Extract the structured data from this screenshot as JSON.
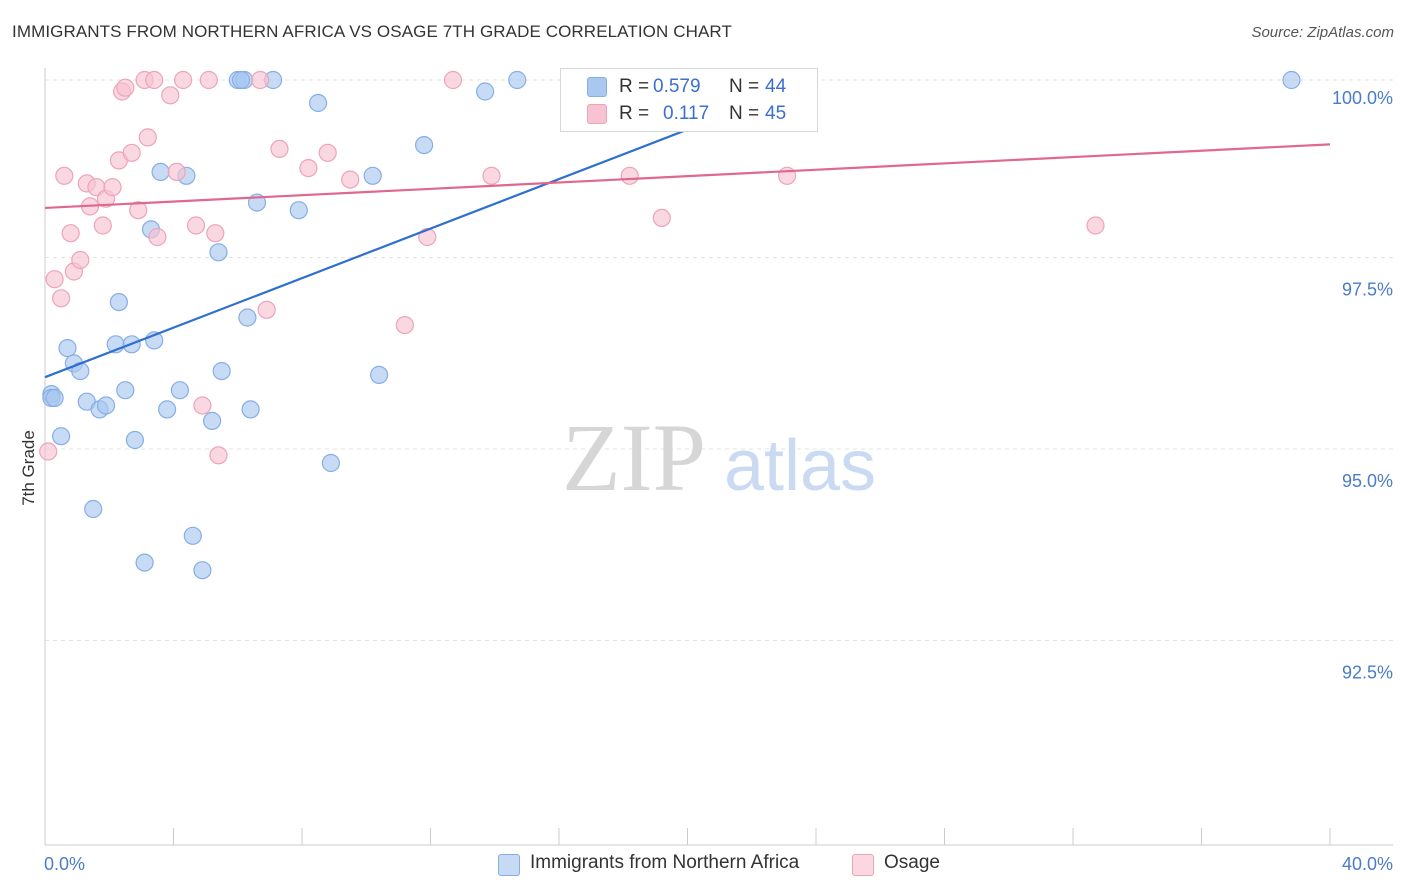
{
  "title": "IMMIGRANTS FROM NORTHERN AFRICA VS OSAGE 7TH GRADE CORRELATION CHART",
  "source": "Source: ZipAtlas.com",
  "watermark": {
    "zip": "ZIP",
    "atlas": "atlas"
  },
  "legend": {
    "r_label": "R =",
    "n_label": "N =",
    "series": [
      {
        "r": "0.579",
        "n": "44"
      },
      {
        "r": "0.117",
        "n": "45"
      }
    ]
  },
  "chart_data": {
    "type": "scatter",
    "title": "IMMIGRANTS FROM NORTHERN AFRICA VS OSAGE 7TH GRADE CORRELATION CHART",
    "xlabel": "",
    "ylabel": "7th Grade",
    "xlim": [
      0,
      40
    ],
    "ylim": [
      90.0,
      100.15
    ],
    "x_tick_labels": [
      "0.0%",
      "40.0%"
    ],
    "y_ticks": [
      100.0,
      97.5,
      95.0,
      92.5
    ],
    "y_tick_labels": [
      "100.0%",
      "97.5%",
      "95.0%",
      "92.5%"
    ],
    "legend_position": "top-center",
    "series": [
      {
        "name": "Immigrants from Northern Africa",
        "color": "#a9c7ef",
        "stroke": "#86aee6",
        "line_color": "#2f6fd0",
        "trend": {
          "x": [
            0,
            24
          ],
          "y": [
            96.12,
            100.0
          ]
        },
        "points": [
          [
            0.2,
            95.9
          ],
          [
            0.2,
            95.85
          ],
          [
            0.5,
            95.35
          ],
          [
            0.7,
            96.5
          ],
          [
            0.9,
            96.3
          ],
          [
            1.1,
            96.2
          ],
          [
            1.3,
            95.8
          ],
          [
            1.5,
            94.4
          ],
          [
            1.7,
            95.7
          ],
          [
            1.9,
            95.75
          ],
          [
            2.2,
            96.55
          ],
          [
            2.3,
            97.1
          ],
          [
            2.5,
            95.95
          ],
          [
            2.7,
            96.55
          ],
          [
            2.8,
            95.3
          ],
          [
            3.1,
            93.7
          ],
          [
            3.3,
            98.05
          ],
          [
            3.4,
            96.6
          ],
          [
            3.6,
            98.8
          ],
          [
            3.8,
            95.7
          ],
          [
            4.2,
            95.95
          ],
          [
            4.4,
            98.75
          ],
          [
            4.6,
            94.05
          ],
          [
            4.9,
            93.6
          ],
          [
            5.2,
            95.55
          ],
          [
            5.4,
            97.75
          ],
          [
            5.5,
            96.2
          ],
          [
            6.0,
            100.0
          ],
          [
            6.2,
            100.0
          ],
          [
            6.3,
            96.9
          ],
          [
            6.4,
            95.7
          ],
          [
            6.6,
            98.4
          ],
          [
            7.1,
            100.0
          ],
          [
            7.9,
            98.3
          ],
          [
            8.5,
            99.7
          ],
          [
            8.9,
            95.0
          ],
          [
            10.2,
            98.75
          ],
          [
            10.4,
            96.15
          ],
          [
            11.8,
            99.15
          ],
          [
            13.7,
            99.85
          ],
          [
            14.7,
            100.0
          ],
          [
            38.8,
            100.0
          ],
          [
            0.3,
            95.85
          ],
          [
            6.1,
            100.0
          ]
        ]
      },
      {
        "name": "Osage",
        "color": "#f7c3d3",
        "stroke": "#eda3ba",
        "line_color": "#e0688e",
        "trend": {
          "x": [
            0,
            40
          ],
          "y": [
            98.33,
            99.16
          ]
        },
        "points": [
          [
            0.1,
            95.15
          ],
          [
            0.3,
            97.4
          ],
          [
            0.5,
            97.15
          ],
          [
            0.6,
            98.75
          ],
          [
            0.8,
            98.0
          ],
          [
            0.9,
            97.5
          ],
          [
            1.1,
            97.65
          ],
          [
            1.3,
            98.65
          ],
          [
            1.4,
            98.35
          ],
          [
            1.6,
            98.6
          ],
          [
            1.8,
            98.1
          ],
          [
            1.9,
            98.45
          ],
          [
            2.1,
            98.6
          ],
          [
            2.3,
            98.95
          ],
          [
            2.4,
            99.85
          ],
          [
            2.5,
            99.9
          ],
          [
            2.7,
            99.05
          ],
          [
            2.9,
            98.3
          ],
          [
            3.1,
            100.0
          ],
          [
            3.2,
            99.25
          ],
          [
            3.4,
            100.0
          ],
          [
            3.5,
            97.95
          ],
          [
            3.9,
            99.8
          ],
          [
            4.1,
            98.8
          ],
          [
            4.3,
            100.0
          ],
          [
            4.7,
            98.1
          ],
          [
            4.9,
            95.75
          ],
          [
            5.1,
            100.0
          ],
          [
            5.3,
            98.0
          ],
          [
            5.4,
            95.1
          ],
          [
            6.7,
            100.0
          ],
          [
            6.9,
            97.0
          ],
          [
            7.3,
            99.1
          ],
          [
            8.2,
            98.85
          ],
          [
            8.8,
            99.05
          ],
          [
            9.5,
            98.7
          ],
          [
            11.2,
            96.8
          ],
          [
            11.9,
            97.95
          ],
          [
            12.7,
            100.0
          ],
          [
            13.9,
            98.75
          ],
          [
            18.2,
            98.75
          ],
          [
            19.2,
            98.2
          ],
          [
            23.1,
            98.75
          ],
          [
            32.7,
            98.1
          ],
          [
            19.0,
            100.0
          ]
        ]
      }
    ]
  }
}
